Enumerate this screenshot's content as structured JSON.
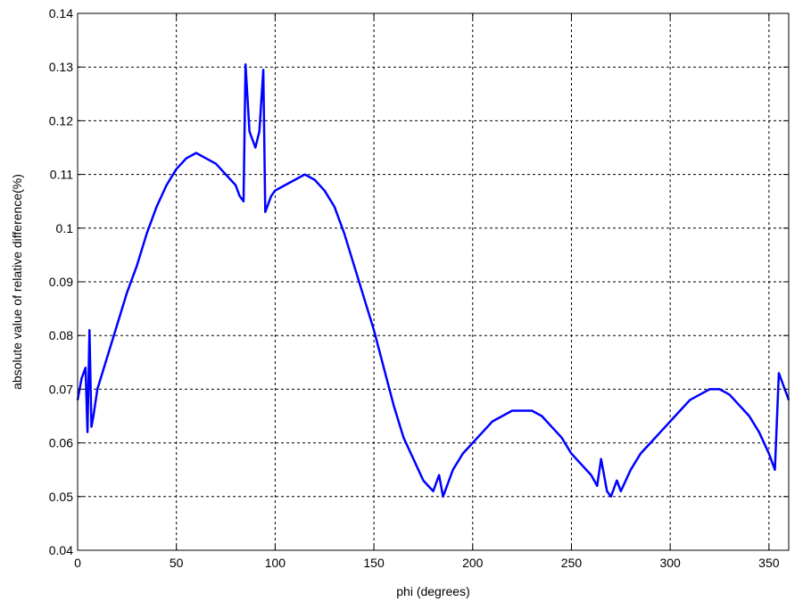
{
  "chart_data": {
    "type": "line",
    "title": "",
    "xlabel": "phi (degrees)",
    "ylabel": "absolute value of relative difference(%)",
    "xlim": [
      0,
      360
    ],
    "ylim": [
      0.04,
      0.14
    ],
    "grid": true,
    "legend": "none",
    "line_color": "#0000ff",
    "x_ticks": [
      0,
      50,
      100,
      150,
      200,
      250,
      300,
      350
    ],
    "x_tick_labels": [
      "0",
      "50",
      "100",
      "150",
      "200",
      "250",
      "300",
      "350"
    ],
    "y_ticks": [
      0.04,
      0.05,
      0.06,
      0.07,
      0.08,
      0.09,
      0.1,
      0.11,
      0.12,
      0.13,
      0.14
    ],
    "y_tick_labels": [
      "0.04",
      "0.05",
      "0.06",
      "0.07",
      "0.08",
      "0.09",
      "0.1",
      "0.11",
      "0.12",
      "0.13",
      "0.14"
    ],
    "series": [
      {
        "x": [
          0,
          2,
          4,
          5,
          6,
          7,
          8,
          10,
          15,
          20,
          25,
          30,
          35,
          40,
          45,
          50,
          55,
          60,
          65,
          70,
          75,
          80,
          82,
          84,
          85,
          87,
          90,
          92,
          94,
          95,
          96,
          98,
          100,
          105,
          110,
          115,
          120,
          125,
          130,
          135,
          140,
          145,
          150,
          155,
          160,
          165,
          170,
          175,
          180,
          183,
          185,
          190,
          195,
          200,
          205,
          210,
          215,
          220,
          225,
          230,
          235,
          240,
          245,
          250,
          255,
          260,
          263,
          265,
          268,
          270,
          273,
          275,
          280,
          285,
          290,
          295,
          300,
          305,
          310,
          315,
          320,
          325,
          330,
          335,
          340,
          345,
          350,
          353,
          355,
          357,
          360
        ],
        "y": [
          0.068,
          0.072,
          0.074,
          0.062,
          0.081,
          0.063,
          0.065,
          0.07,
          0.076,
          0.082,
          0.088,
          0.093,
          0.099,
          0.104,
          0.108,
          0.111,
          0.113,
          0.114,
          0.113,
          0.112,
          0.11,
          0.108,
          0.106,
          0.105,
          0.1305,
          0.118,
          0.115,
          0.118,
          0.1295,
          0.103,
          0.104,
          0.106,
          0.107,
          0.108,
          0.109,
          0.11,
          0.109,
          0.107,
          0.104,
          0.099,
          0.093,
          0.087,
          0.081,
          0.074,
          0.067,
          0.061,
          0.057,
          0.053,
          0.051,
          0.054,
          0.05,
          0.055,
          0.058,
          0.06,
          0.062,
          0.064,
          0.065,
          0.066,
          0.066,
          0.066,
          0.065,
          0.063,
          0.061,
          0.058,
          0.056,
          0.054,
          0.052,
          0.057,
          0.051,
          0.05,
          0.053,
          0.051,
          0.055,
          0.058,
          0.06,
          0.062,
          0.064,
          0.066,
          0.068,
          0.069,
          0.07,
          0.07,
          0.069,
          0.067,
          0.065,
          0.062,
          0.058,
          0.055,
          0.073,
          0.071,
          0.068
        ]
      }
    ]
  }
}
